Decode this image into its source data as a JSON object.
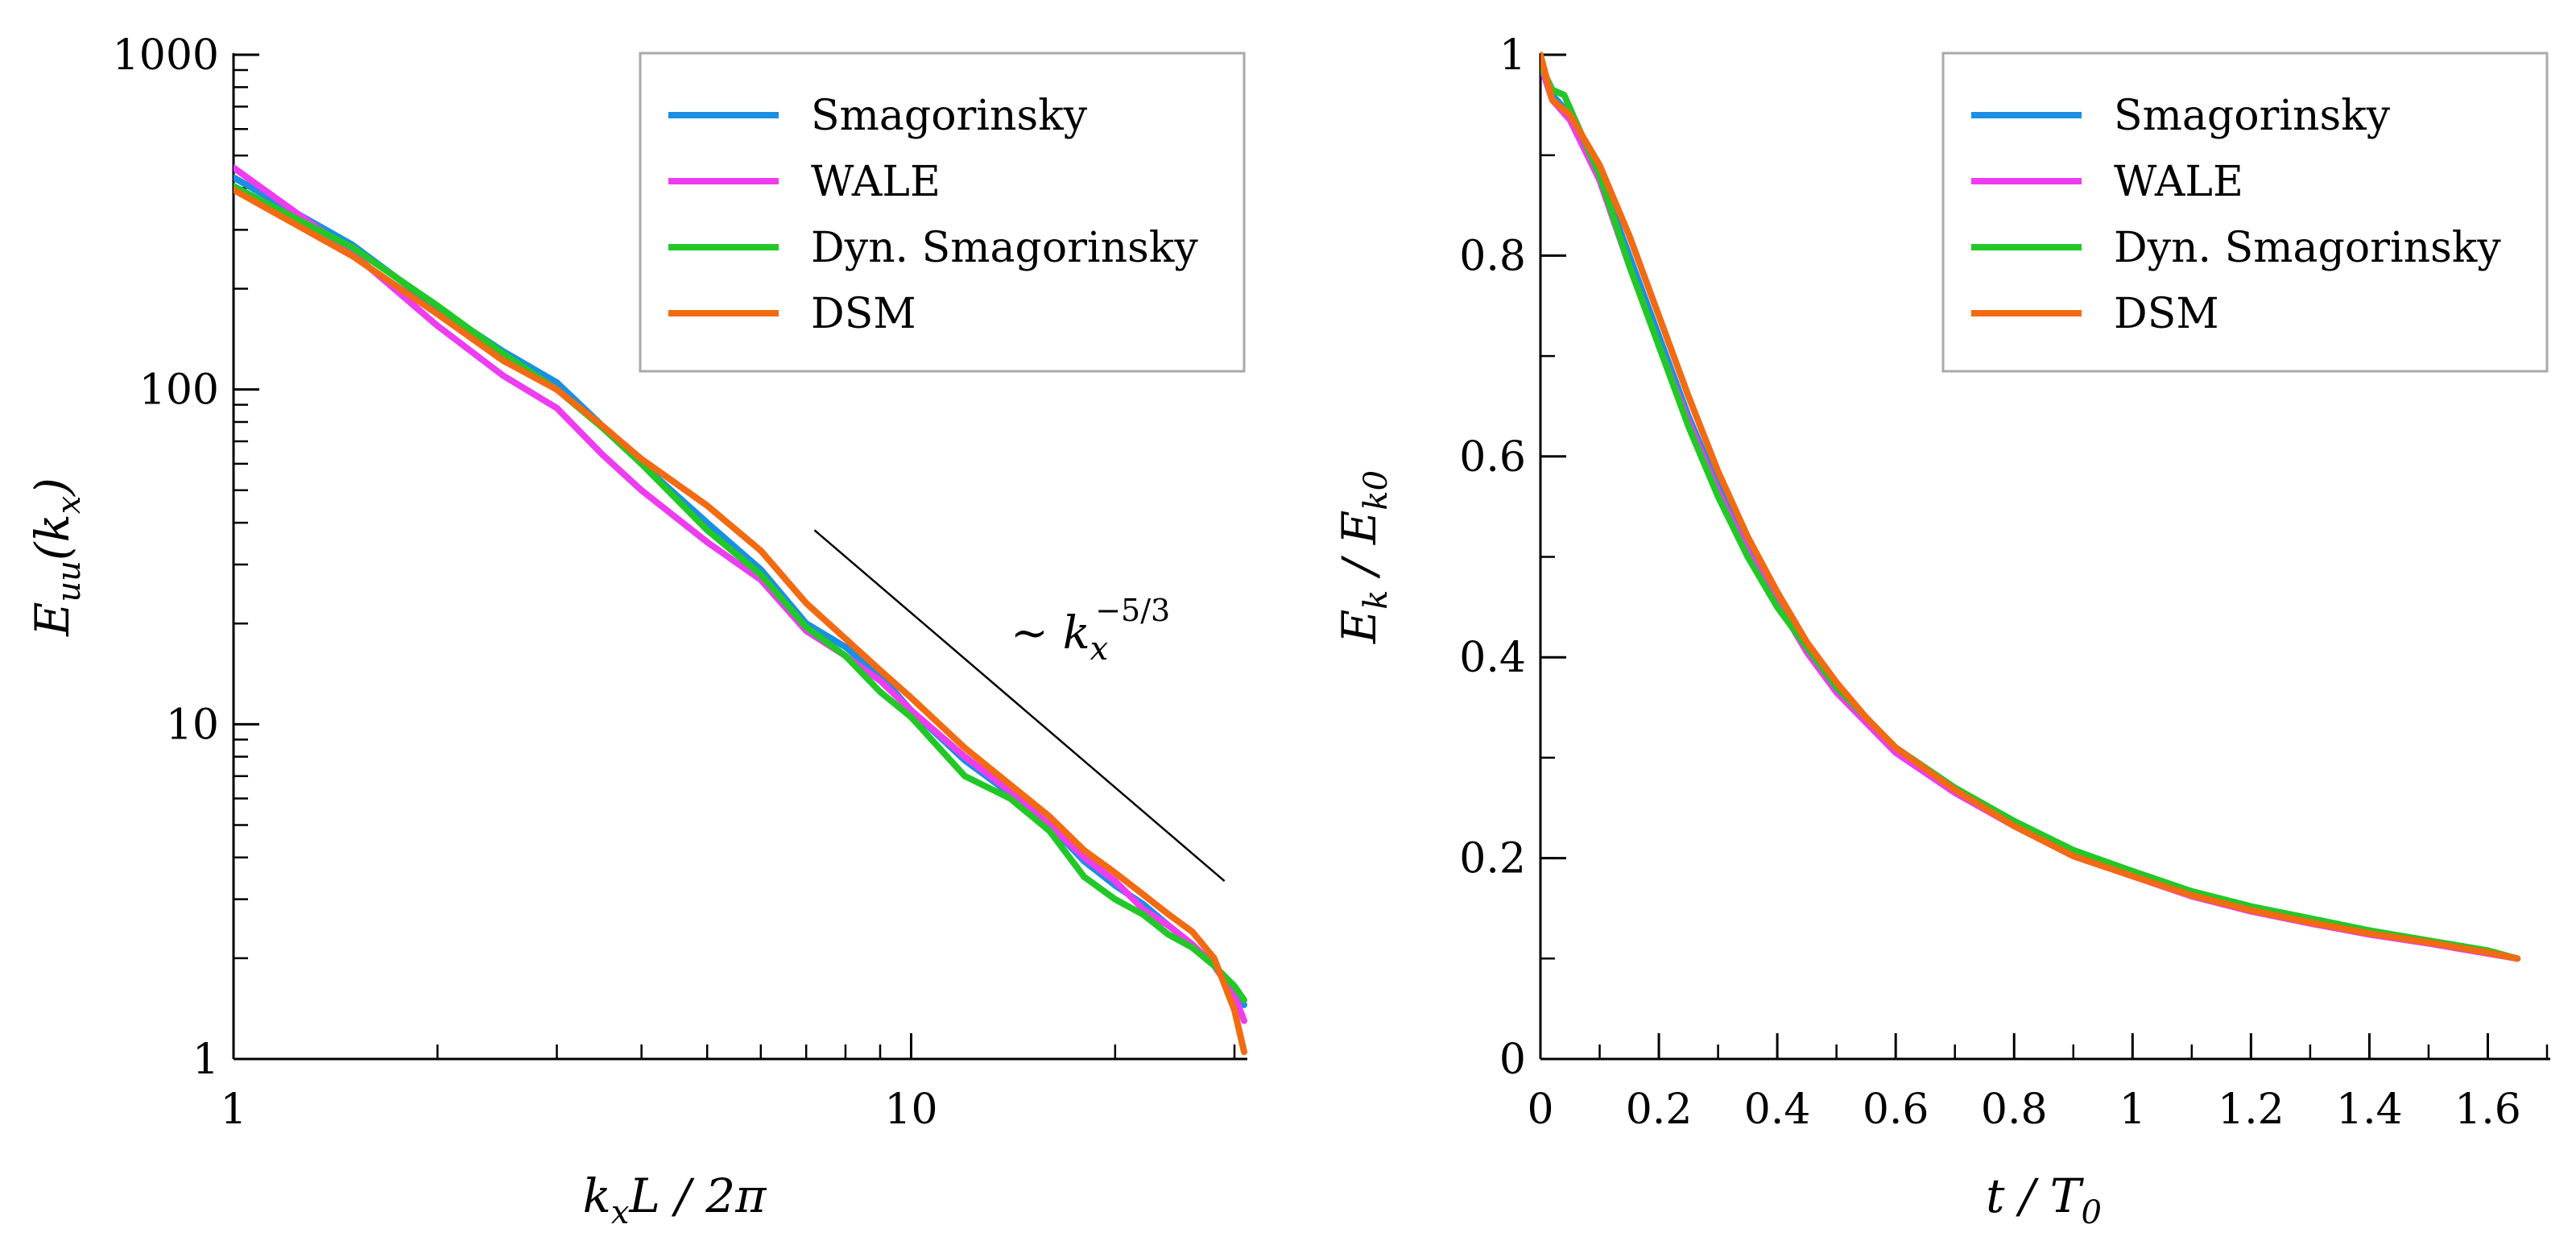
{
  "colors": {
    "Smagorinsky": "#1a8fe3",
    "WALE": "#ee3cf0",
    "Dyn. Smagorinsky": "#22c827",
    "DSM": "#f26a12"
  },
  "chart_data": [
    {
      "type": "line",
      "scale": "log-log",
      "ylabel": {
        "main": "E",
        "sub": "uu",
        "rest": "(k",
        "sub2": "x",
        "close": ")"
      },
      "xlabel": {
        "main": "k",
        "sub": "x",
        "rest": "L / 2π"
      },
      "xlim": [
        1,
        31
      ],
      "ylim": [
        1,
        1000
      ],
      "xticks": [
        {
          "v": 1,
          "label": "1"
        },
        {
          "v": 10,
          "label": "10"
        }
      ],
      "yticks": [
        {
          "v": 1,
          "label": "1"
        },
        {
          "v": 10,
          "label": "10"
        },
        {
          "v": 100,
          "label": "100"
        },
        {
          "v": 1000,
          "label": "1000"
        }
      ],
      "legend": [
        "Smagorinsky",
        "WALE",
        "Dyn. Smagorinsky",
        "DSM"
      ],
      "legend_position": "top-right",
      "annotation": {
        "prefix": "~ k",
        "sub": "x",
        "sup": "−5/3"
      },
      "reference_line": {
        "x": [
          7.2,
          29
        ],
        "y": [
          38,
          3.4
        ]
      },
      "series": [
        {
          "name": "Smagorinsky",
          "x": [
            1,
            1.5,
            2,
            2.5,
            3,
            3.5,
            4,
            5,
            6,
            7,
            8,
            9,
            10,
            12,
            14,
            16,
            18,
            20,
            22,
            24,
            26,
            28,
            30,
            31
          ],
          "y": [
            430,
            270,
            175,
            130,
            105,
            78,
            60,
            40,
            29,
            20,
            17,
            14,
            11,
            7.8,
            6.2,
            5.0,
            3.9,
            3.3,
            2.9,
            2.5,
            2.2,
            1.9,
            1.6,
            1.45
          ]
        },
        {
          "name": "WALE",
          "x": [
            1,
            1.5,
            2,
            2.5,
            3,
            3.5,
            4,
            5,
            6,
            7,
            8,
            9,
            10,
            12,
            14,
            16,
            18,
            20,
            22,
            24,
            26,
            28,
            30,
            31
          ],
          "y": [
            460,
            255,
            155,
            110,
            88,
            64,
            50,
            35,
            27,
            19,
            16,
            13.5,
            11,
            8.0,
            6.3,
            5.0,
            4.0,
            3.4,
            2.8,
            2.5,
            2.2,
            1.9,
            1.55,
            1.3
          ]
        },
        {
          "name": "Dyn. Smagorinsky",
          "x": [
            1,
            1.5,
            2,
            2.5,
            3,
            3.5,
            4,
            5,
            6,
            7,
            8,
            9,
            10,
            12,
            14,
            16,
            18,
            20,
            22,
            24,
            26,
            28,
            30,
            31
          ],
          "y": [
            405,
            265,
            178,
            128,
            100,
            77,
            60,
            38,
            28,
            19.5,
            16,
            12.5,
            10.5,
            7.0,
            6.0,
            4.8,
            3.5,
            3.0,
            2.7,
            2.35,
            2.15,
            1.9,
            1.65,
            1.5
          ]
        },
        {
          "name": "DSM",
          "x": [
            1,
            1.5,
            2,
            2.5,
            3,
            3.5,
            4,
            5,
            6,
            7,
            8,
            9,
            10,
            12,
            14,
            16,
            18,
            20,
            22,
            24,
            26,
            28,
            30,
            31
          ],
          "y": [
            395,
            250,
            168,
            122,
            100,
            78,
            62,
            45,
            33,
            23,
            18,
            14.5,
            12,
            8.5,
            6.6,
            5.3,
            4.2,
            3.6,
            3.1,
            2.7,
            2.4,
            2.0,
            1.4,
            1.05
          ]
        }
      ]
    },
    {
      "type": "line",
      "ylabel": {
        "main": "E",
        "sub": "k",
        "rest": " / E",
        "sub2": "k0"
      },
      "xlabel": {
        "main": "t",
        "rest": " / T",
        "sub": "0"
      },
      "xlim": [
        0,
        1.7
      ],
      "ylim": [
        0,
        1
      ],
      "xticks": [
        {
          "v": 0,
          "label": "0"
        },
        {
          "v": 0.2,
          "label": "0.2"
        },
        {
          "v": 0.4,
          "label": "0.4"
        },
        {
          "v": 0.6,
          "label": "0.6"
        },
        {
          "v": 0.8,
          "label": "0.8"
        },
        {
          "v": 1,
          "label": "1"
        },
        {
          "v": 1.2,
          "label": "1.2"
        },
        {
          "v": 1.4,
          "label": "1.4"
        },
        {
          "v": 1.6,
          "label": "1.6"
        }
      ],
      "yticks": [
        {
          "v": 0,
          "label": "0"
        },
        {
          "v": 0.2,
          "label": "0.2"
        },
        {
          "v": 0.4,
          "label": "0.4"
        },
        {
          "v": 0.6,
          "label": "0.6"
        },
        {
          "v": 0.8,
          "label": "0.8"
        },
        {
          "v": 1,
          "label": "1"
        }
      ],
      "legend": [
        "Smagorinsky",
        "WALE",
        "Dyn. Smagorinsky",
        "DSM"
      ],
      "legend_position": "top-right",
      "series": [
        {
          "name": "Smagorinsky",
          "x": [
            0,
            0.02,
            0.05,
            0.1,
            0.15,
            0.2,
            0.25,
            0.3,
            0.35,
            0.4,
            0.45,
            0.5,
            0.55,
            0.6,
            0.7,
            0.8,
            0.9,
            1.0,
            1.1,
            1.2,
            1.3,
            1.4,
            1.5,
            1.6,
            1.65
          ],
          "y": [
            0.99,
            0.96,
            0.94,
            0.88,
            0.8,
            0.72,
            0.64,
            0.57,
            0.51,
            0.46,
            0.41,
            0.37,
            0.34,
            0.31,
            0.27,
            0.235,
            0.205,
            0.185,
            0.165,
            0.15,
            0.138,
            0.127,
            0.117,
            0.107,
            0.1
          ]
        },
        {
          "name": "WALE",
          "x": [
            0,
            0.02,
            0.05,
            0.1,
            0.15,
            0.2,
            0.25,
            0.3,
            0.35,
            0.4,
            0.45,
            0.5,
            0.55,
            0.6,
            0.7,
            0.8,
            0.9,
            1.0,
            1.1,
            1.2,
            1.3,
            1.4,
            1.5,
            1.6,
            1.65
          ],
          "y": [
            0.99,
            0.955,
            0.935,
            0.875,
            0.79,
            0.71,
            0.635,
            0.565,
            0.505,
            0.455,
            0.405,
            0.365,
            0.335,
            0.305,
            0.265,
            0.232,
            0.202,
            0.182,
            0.162,
            0.147,
            0.135,
            0.124,
            0.115,
            0.105,
            0.1
          ]
        },
        {
          "name": "Dyn. Smagorinsky",
          "x": [
            0,
            0.02,
            0.04,
            0.1,
            0.15,
            0.2,
            0.25,
            0.3,
            0.35,
            0.4,
            0.45,
            0.5,
            0.55,
            0.6,
            0.7,
            0.8,
            0.9,
            1.0,
            1.1,
            1.2,
            1.3,
            1.4,
            1.5,
            1.6,
            1.65
          ],
          "y": [
            0.99,
            0.965,
            0.96,
            0.88,
            0.79,
            0.71,
            0.63,
            0.56,
            0.5,
            0.45,
            0.41,
            0.37,
            0.34,
            0.31,
            0.27,
            0.237,
            0.208,
            0.187,
            0.167,
            0.152,
            0.14,
            0.128,
            0.118,
            0.108,
            0.1
          ]
        },
        {
          "name": "DSM",
          "x": [
            0,
            0.02,
            0.05,
            0.1,
            0.15,
            0.2,
            0.25,
            0.3,
            0.35,
            0.4,
            0.45,
            0.5,
            0.55,
            0.6,
            0.7,
            0.8,
            0.9,
            1.0,
            1.1,
            1.2,
            1.3,
            1.4,
            1.5,
            1.6,
            1.65
          ],
          "y": [
            1.0,
            0.955,
            0.94,
            0.89,
            0.82,
            0.74,
            0.66,
            0.585,
            0.52,
            0.465,
            0.415,
            0.375,
            0.34,
            0.31,
            0.268,
            0.232,
            0.202,
            0.182,
            0.163,
            0.148,
            0.136,
            0.125,
            0.116,
            0.106,
            0.1
          ]
        }
      ]
    }
  ]
}
